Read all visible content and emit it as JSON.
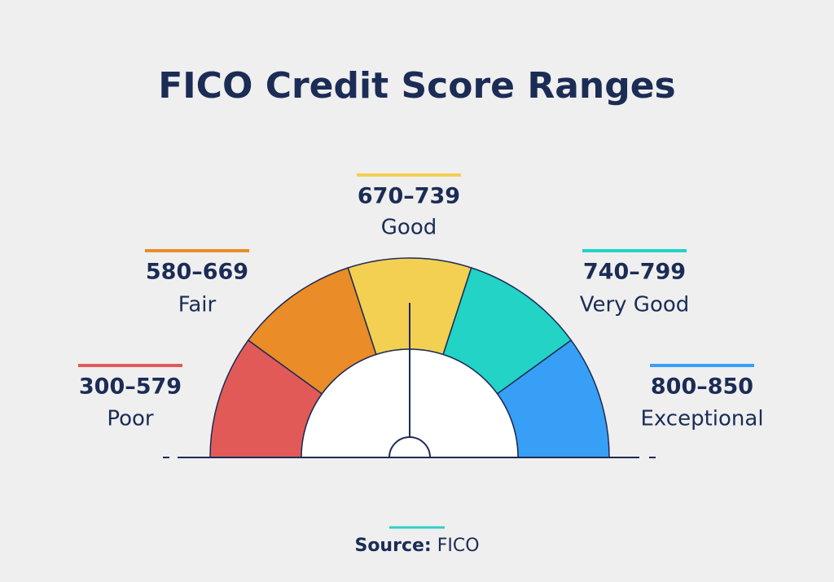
{
  "title": "FICO Credit Score Ranges",
  "ranges": [
    {
      "range": "300–579",
      "label": "Poor"
    },
    {
      "range": "580–669",
      "label": "Fair"
    },
    {
      "range": "670–739",
      "label": "Good"
    },
    {
      "range": "740–799",
      "label": "Very Good"
    },
    {
      "range": "800–850",
      "label": "Exceptional"
    }
  ],
  "source": {
    "label": "Source:",
    "value": "FICO"
  }
}
